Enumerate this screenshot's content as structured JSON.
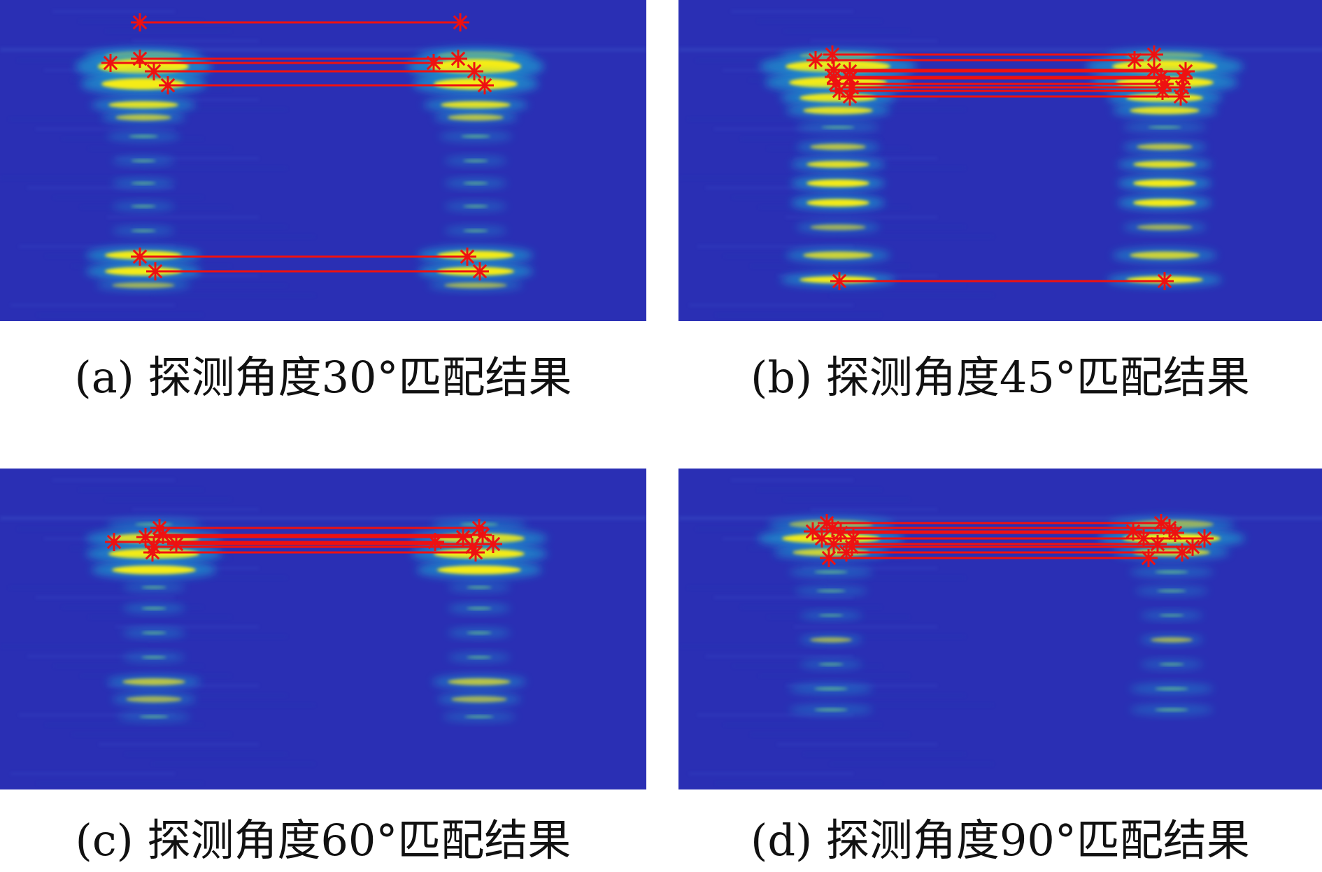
{
  "panels": [
    {
      "id": "a",
      "caption": "(a) 探测角度30°匹配结果"
    },
    {
      "id": "b",
      "caption": "(b) 探测角度45°匹配结果"
    },
    {
      "id": "c",
      "caption": "(c) 探测角度60°匹配结果"
    },
    {
      "id": "d",
      "caption": "(d) 探测角度90°匹配结果"
    }
  ],
  "colors": {
    "background": "#2a2fb4",
    "mid_intensity": "#1f9fd0",
    "high_intensity": "#f5ec18",
    "match_line": "#ee1111",
    "keypoint_marker": "#ee1111"
  },
  "icons": {
    "keypoint_marker": "asterisk-icon"
  }
}
